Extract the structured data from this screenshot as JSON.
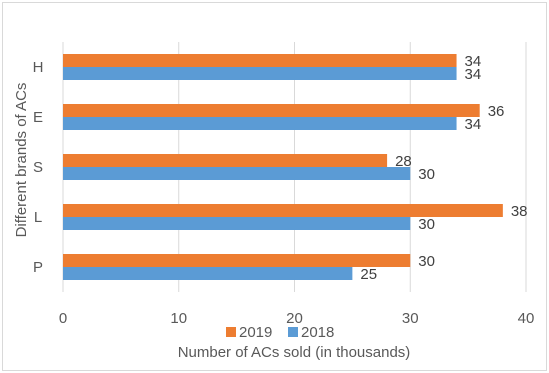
{
  "chart_data": {
    "type": "bar",
    "orientation": "horizontal",
    "title": "",
    "xlabel": "Number of ACs sold (in thousands)",
    "ylabel": "Different brands of ACs",
    "categories": [
      "P",
      "L",
      "S",
      "E",
      "H"
    ],
    "series": [
      {
        "name": "2019",
        "color": "#ED7D31",
        "values": [
          30,
          38,
          28,
          36,
          34
        ]
      },
      {
        "name": "2018",
        "color": "#5B9BD5",
        "values": [
          25,
          30,
          30,
          34,
          34
        ]
      }
    ],
    "xlim": [
      0,
      40
    ],
    "xticks": [
      0,
      10,
      20,
      30,
      40
    ],
    "grid": "vertical",
    "legend_position": "bottom"
  }
}
